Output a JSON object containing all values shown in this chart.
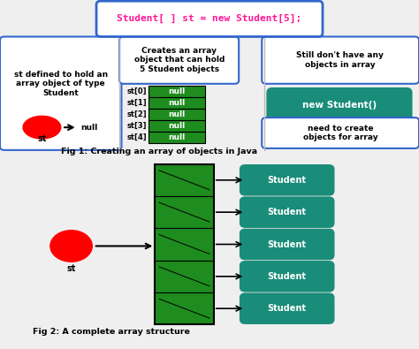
{
  "title": "Student[ ] st = new Student[5];",
  "title_color": "#FF1493",
  "title_box_color": "#3366CC",
  "bg_color": "#EFEFEF",
  "left_box_text": "st defined to hold an\narray object of type\nStudent",
  "mid_box_text": "Creates an array\nobject that can hold\n5 Student objects",
  "right_box1_text": "Still don't have any\nobjects in array",
  "right_box2_text": "new Student()",
  "right_box3_text": "need to create\nobjects for array",
  "null_labels": [
    "st[0]",
    "st[1]",
    "st[2]",
    "st[3]",
    "st[4]"
  ],
  "null_text": "null",
  "green_color": "#1E8C1E",
  "teal_color": "#1A8C7A",
  "fig1_caption": "Fig 1: Creating an array of objects in Java",
  "fig2_caption": "Fig 2: A complete array structure",
  "student_label": "Student",
  "box_border_color": "#3366CC",
  "divider_color": "#BBBBBB"
}
